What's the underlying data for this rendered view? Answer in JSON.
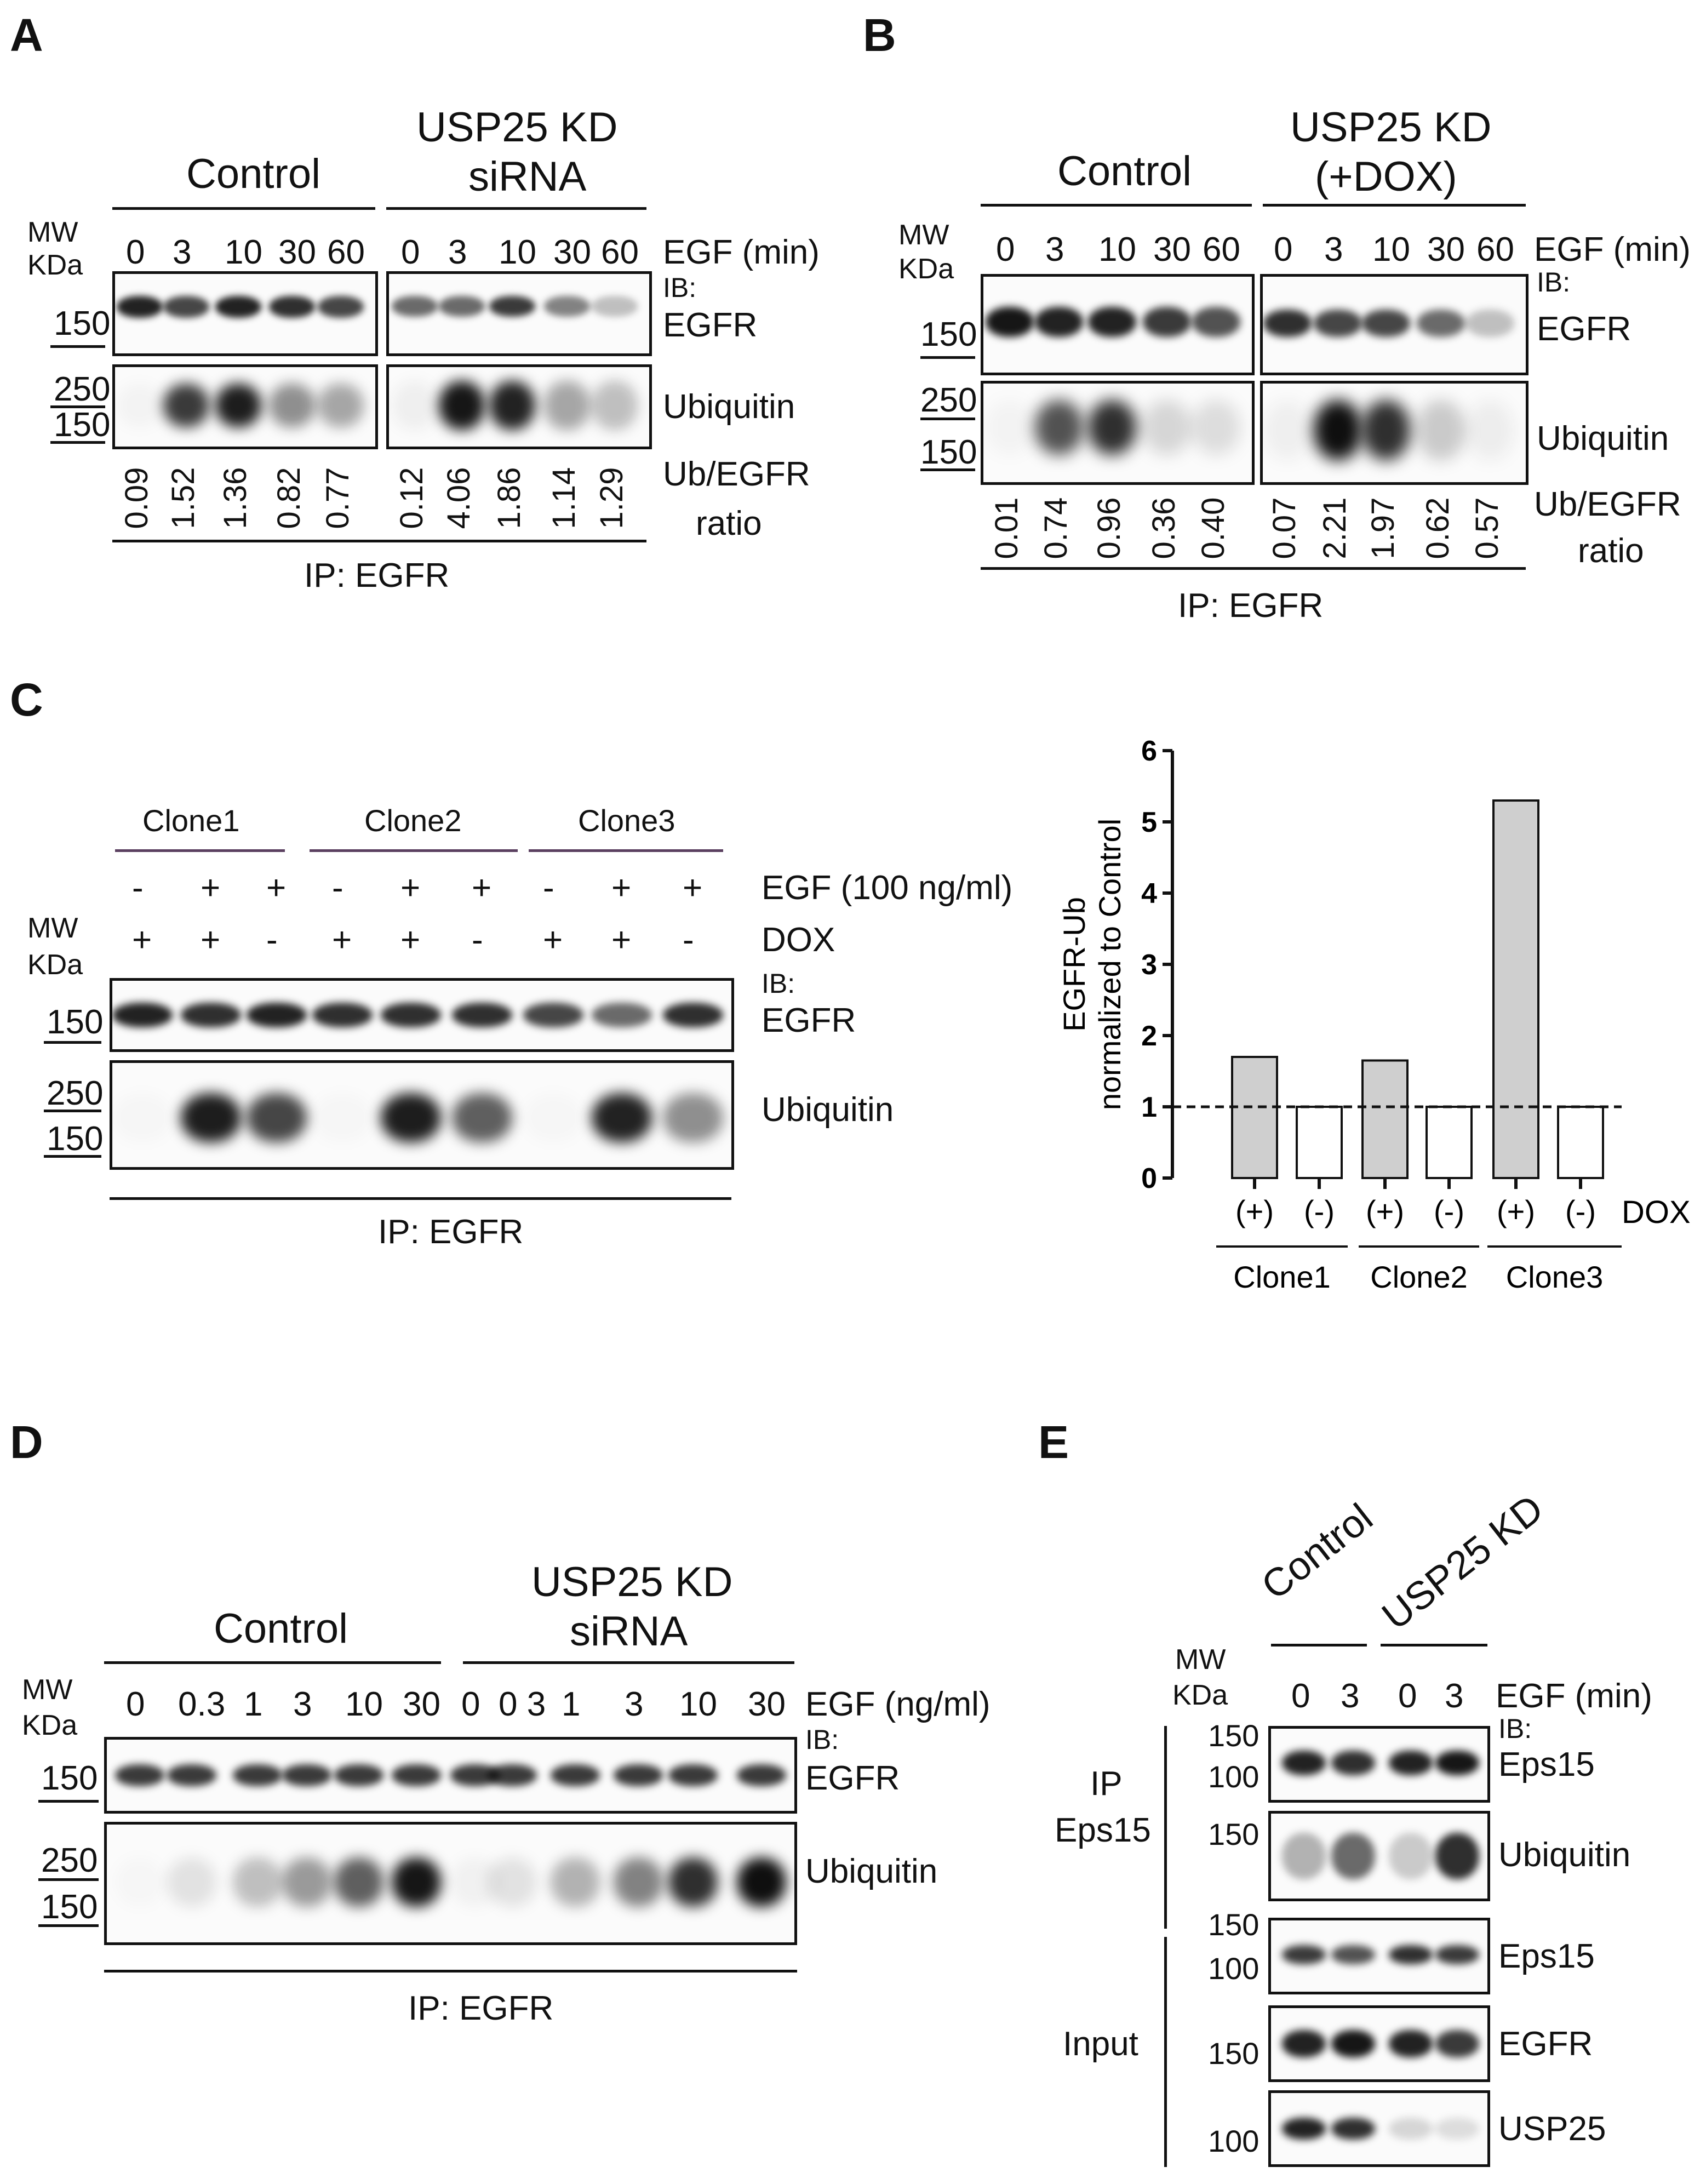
{
  "panels": {
    "a": "A",
    "b": "B",
    "c": "C",
    "d": "D",
    "e": "E"
  },
  "common": {
    "mw": "MW",
    "kda": "KDa",
    "ib": "IB:",
    "egfr": "EGFR",
    "ubiquitin": "Ubiquitin",
    "ip_egfr": "IP: EGFR",
    "ratio_line1": "Ub/EGFR",
    "ratio_line2": "ratio",
    "mw150": "150",
    "mw250": "250",
    "mw100": "100"
  },
  "panelA": {
    "control": "Control",
    "kd_line1": "USP25 KD",
    "kd_line2": "siRNA",
    "egf_label": "EGF (min)",
    "times": [
      "0",
      "3",
      "10",
      "30",
      "60",
      "0",
      "3",
      "10",
      "30",
      "60"
    ],
    "ratios": [
      "0.09",
      "1.52",
      "1.36",
      "0.82",
      "0.77",
      "0.12",
      "4.06",
      "1.86",
      "1.14",
      "1.29"
    ]
  },
  "panelB": {
    "control": "Control",
    "kd_line1": "USP25 KD",
    "kd_line2": "(+DOX)",
    "egf_label": "EGF (min)",
    "times": [
      "0",
      "3",
      "10",
      "30",
      "60",
      "0",
      "3",
      "10",
      "30",
      "60"
    ],
    "ratios": [
      "0.01",
      "0.74",
      "0.96",
      "0.36",
      "0.40",
      "0.07",
      "2.21",
      "1.97",
      "0.62",
      "0.57"
    ]
  },
  "panelC": {
    "clones": [
      "Clone1",
      "Clone2",
      "Clone3"
    ],
    "egf_label": "EGF (100 ng/ml)",
    "dox_label": "DOX",
    "egf_signs": [
      "-",
      "+",
      "+",
      "-",
      "+",
      "+",
      "-",
      "+",
      "+"
    ],
    "dox_signs": [
      "+",
      "+",
      "-",
      "+",
      "+",
      "-",
      "+",
      "+",
      "-"
    ]
  },
  "chart_data": {
    "type": "bar",
    "ylabel_line1": "EGFR-Ub",
    "ylabel_line2": "normalized to Control",
    "ylim": [
      0,
      6
    ],
    "yticks": [
      "0",
      "1",
      "2",
      "3",
      "4",
      "5",
      "6"
    ],
    "categories": [
      "(+)",
      "(-)",
      "(+)",
      "(-)",
      "(+)",
      "(-)"
    ],
    "groups": [
      "Clone1",
      "Clone2",
      "Clone3"
    ],
    "values": [
      1.7,
      1.0,
      1.65,
      1.0,
      5.3,
      1.0
    ],
    "bar_colors": [
      "#cfcfcf",
      "#ffffff",
      "#cfcfcf",
      "#ffffff",
      "#cfcfcf",
      "#ffffff"
    ],
    "reference_line": 1,
    "xlabel": "DOX"
  },
  "panelD": {
    "control": "Control",
    "kd_line1": "USP25 KD",
    "kd_line2": "siRNA",
    "egf_label": "EGF (ng/ml)",
    "doses": [
      "0",
      "0.3",
      "1",
      "3",
      "10",
      "30",
      "0",
      "0 3",
      "1",
      "3",
      "10",
      "30"
    ]
  },
  "panelE": {
    "control": "Control",
    "kd": "USP25 KD",
    "egf_label": "EGF (min)",
    "times": [
      "0",
      "3",
      "0",
      "3"
    ],
    "ip_line1": "IP",
    "ip_line2": "Eps15",
    "input": "Input",
    "eps15": "Eps15",
    "usp25": "USP25"
  }
}
